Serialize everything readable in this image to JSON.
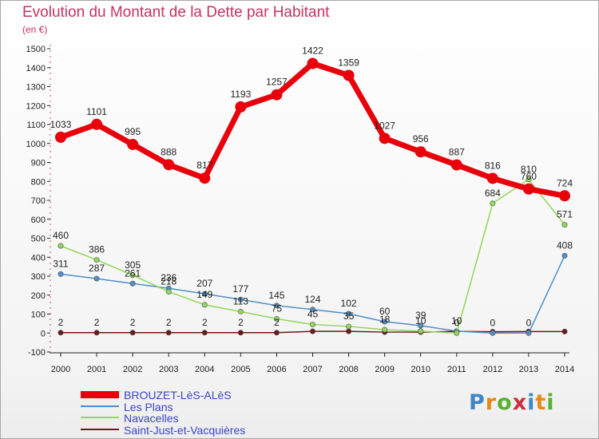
{
  "title": "Evolution du Montant de la Dette par Habitant",
  "unit": "(en €)",
  "logo": "Proxiti",
  "chart_data": {
    "type": "line",
    "x": [
      "2000",
      "2001",
      "2002",
      "2003",
      "2004",
      "2005",
      "2006",
      "2007",
      "2008",
      "2009",
      "2010",
      "2011",
      "2012",
      "2013",
      "2014"
    ],
    "ylim": [
      -100,
      1500
    ],
    "yticks": [
      -100,
      0,
      100,
      200,
      300,
      400,
      500,
      600,
      700,
      800,
      900,
      1000,
      1100,
      1200,
      1300,
      1400,
      1500
    ],
    "grid": false,
    "legend_position": "bottom-left",
    "series": [
      {
        "name": "BROUZET-LèS-ALèS",
        "color": "#e8000a",
        "values": [
          1033,
          1101,
          995,
          888,
          817,
          1193,
          1257,
          1422,
          1359,
          1027,
          956,
          887,
          816,
          760,
          724
        ],
        "labels": [
          "1033",
          "1101",
          "995",
          "888",
          "817",
          "1193",
          "1257",
          "1422",
          "1359",
          "1027",
          "956",
          "887",
          "816",
          "760",
          "724"
        ]
      },
      {
        "name": "Les Plans",
        "color": "#4f8fc8",
        "values": [
          311,
          287,
          261,
          236,
          207,
          177,
          145,
          124,
          102,
          60,
          39,
          10,
          0,
          0,
          408
        ],
        "labels": [
          "311",
          "287",
          "261",
          "236",
          "207",
          "177",
          "145",
          "124",
          "102",
          "60",
          "39",
          "10",
          "0",
          "0",
          "408"
        ]
      },
      {
        "name": "Navacelles",
        "color": "#8fd65a",
        "values": [
          460,
          386,
          305,
          218,
          149,
          113,
          75,
          45,
          35,
          18,
          10,
          0,
          684,
          810,
          571
        ],
        "labels": [
          "460",
          "386",
          "305",
          "218",
          "149",
          "113",
          "75",
          "45",
          "35",
          "18",
          "10",
          "0",
          "684",
          "810",
          "571"
        ]
      },
      {
        "name": "Saint-Just-et-Vacquières",
        "color": "#6a1a1a",
        "values": [
          2,
          2,
          2,
          2,
          2,
          2,
          2,
          9,
          9,
          5,
          5,
          9,
          7,
          8,
          8
        ],
        "labels": [
          "2",
          "2",
          "2",
          "2",
          "2",
          "2",
          "2",
          "",
          "",
          "",
          "",
          "",
          "",
          "",
          ""
        ]
      }
    ]
  }
}
